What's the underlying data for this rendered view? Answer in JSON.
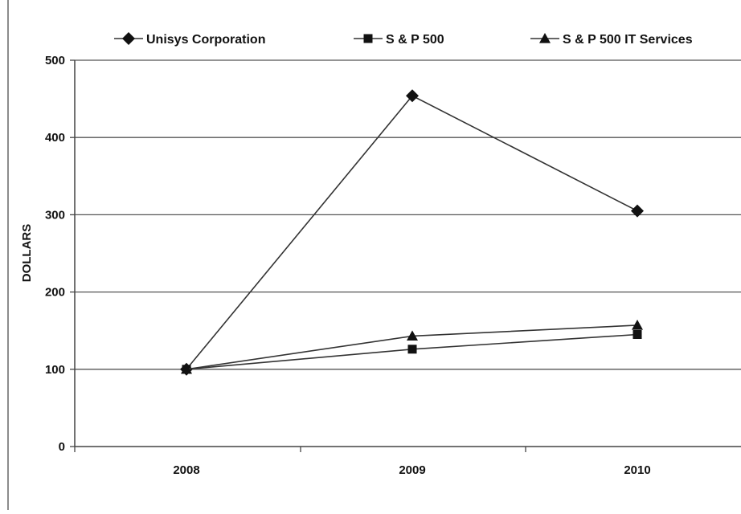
{
  "chart_data": {
    "type": "line",
    "title": "",
    "xlabel": "",
    "ylabel": "DOLLARS",
    "categories": [
      "2008",
      "2009",
      "2010"
    ],
    "ylim": [
      0,
      500
    ],
    "yticks": [
      0,
      100,
      200,
      300,
      400,
      500
    ],
    "grid": "horizontal",
    "legend_position": "top",
    "series": [
      {
        "name": "Unisys Corporation",
        "marker": "diamond",
        "values": [
          100,
          454,
          305
        ]
      },
      {
        "name": "S & P 500",
        "marker": "square",
        "values": [
          100,
          126,
          145
        ]
      },
      {
        "name": "S & P 500 IT Services",
        "marker": "triangle",
        "values": [
          100,
          143,
          157
        ]
      }
    ]
  },
  "colors": {
    "line": "#333333",
    "grid": "#555555",
    "axis": "#444444",
    "marker": "#111111"
  }
}
